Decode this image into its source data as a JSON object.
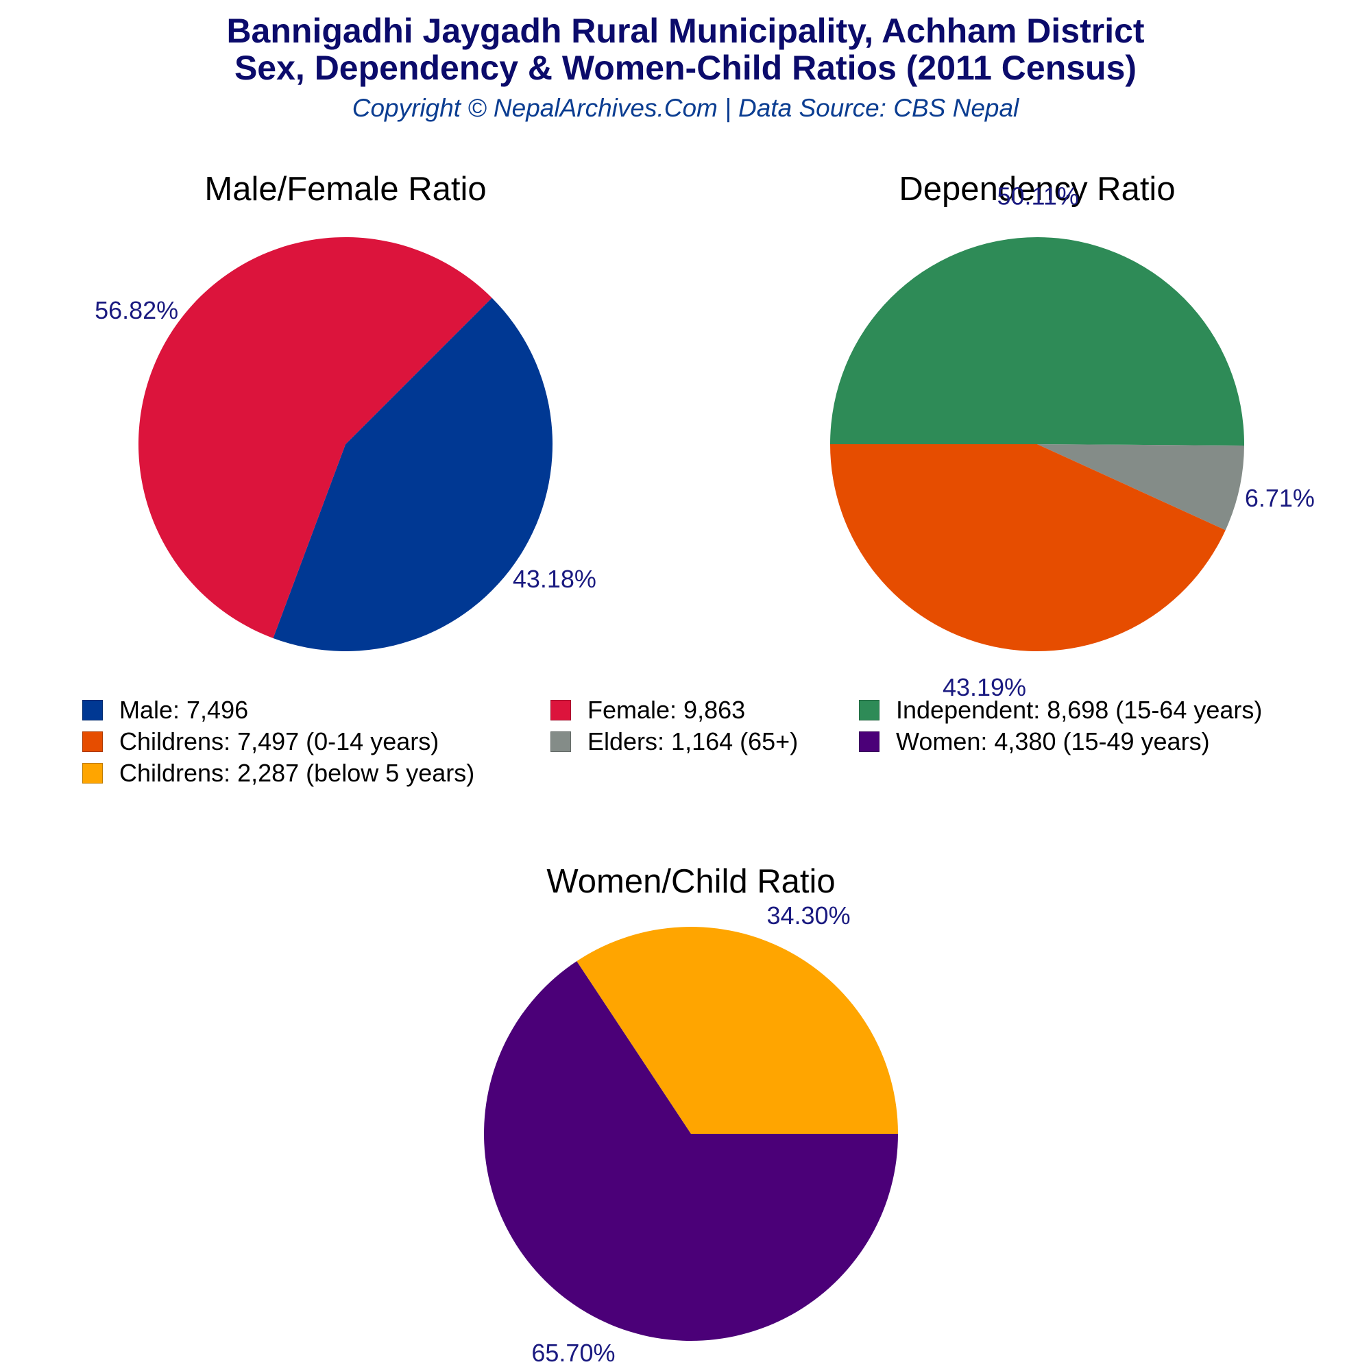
{
  "header": {
    "title_line1": "Bannigadhi Jaygadh Rural Municipality, Achham District",
    "title_line2": "Sex, Dependency & Women-Child Ratios (2011 Census)",
    "subtitle": "Copyright © NepalArchives.Com | Data Source: CBS Nepal"
  },
  "chart_data": [
    {
      "type": "pie",
      "title": "Male/Female Ratio",
      "slices": [
        {
          "name": "Male",
          "value": 7496,
          "percent_label": "43.18%",
          "color": "#003893"
        },
        {
          "name": "Female",
          "value": 9863,
          "percent_label": "56.82%",
          "color": "#dc143c"
        }
      ]
    },
    {
      "type": "pie",
      "title": "Dependency Ratio",
      "slices": [
        {
          "name": "Independent",
          "value": 8698,
          "percent_label": "50.11%",
          "color": "#2e8b57"
        },
        {
          "name": "Elders",
          "value": 1164,
          "percent_label": "6.71%",
          "color": "#848c88"
        },
        {
          "name": "Childrens",
          "value": 7497,
          "percent_label": "43.19%",
          "color": "#e64d00"
        }
      ]
    },
    {
      "type": "pie",
      "title": "Women/Child Ratio",
      "slices": [
        {
          "name": "Women",
          "value": 4380,
          "percent_label": "65.70%",
          "color": "#4b0078"
        },
        {
          "name": "Childrens",
          "value": 2287,
          "percent_label": "34.30%",
          "color": "#ffa500"
        }
      ]
    }
  ],
  "legend": {
    "placement": "middle",
    "items": [
      {
        "label": "Male: 7,496",
        "color": "#003893"
      },
      {
        "label": "Female: 9,863",
        "color": "#dc143c"
      },
      {
        "label": "Independent: 8,698 (15-64 years)",
        "color": "#2e8b57"
      },
      {
        "label": "Childrens: 7,497 (0-14 years)",
        "color": "#e64d00"
      },
      {
        "label": "Elders: 1,164 (65+)",
        "color": "#848c88"
      },
      {
        "label": "Women: 4,380 (15-49 years)",
        "color": "#4b0078"
      },
      {
        "label": "Childrens: 2,287 (below 5 years)",
        "color": "#ffa500"
      }
    ]
  },
  "style": {
    "percent_label_color": "#1a1a80",
    "chart_title_color": "#000000"
  }
}
